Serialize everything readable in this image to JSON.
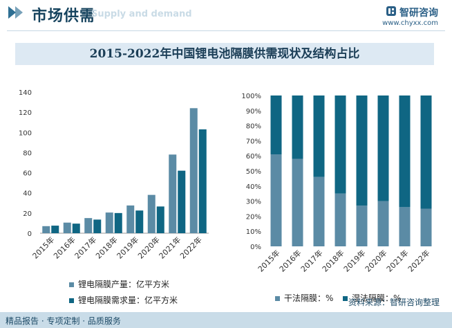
{
  "header": {
    "title": "市场供需",
    "subtitle": "Supply and demand",
    "brand": "智研咨询",
    "site": "www.chyxx.com"
  },
  "banner": "2015-2022年中国锂电池隔膜供需现状及结构占比",
  "colors": {
    "light": "#5b8ba5",
    "dark": "#0f6683"
  },
  "chart_data": [
    {
      "type": "bar",
      "categories": [
        "2015年",
        "2016年",
        "2017年",
        "2018年",
        "2019年",
        "2020年",
        "2021年",
        "2022年"
      ],
      "series": [
        {
          "name": "锂电隔膜产量：亿平方米",
          "values": [
            7,
            10.5,
            15,
            20.5,
            27.5,
            38,
            78,
            124
          ]
        },
        {
          "name": "锂电隔膜需求量：亿平方米",
          "values": [
            7.5,
            9.5,
            13.5,
            20,
            22.5,
            26.5,
            62,
            103
          ]
        }
      ],
      "ylim": [
        0,
        140
      ],
      "yticks": [
        "0",
        "20",
        "40",
        "60",
        "80",
        "100",
        "120",
        "140"
      ]
    },
    {
      "type": "bar",
      "stacked": true,
      "categories": [
        "2015年",
        "2016年",
        "2017年",
        "2018年",
        "2019年",
        "2020年",
        "2021年",
        "2022年"
      ],
      "series": [
        {
          "name": "干法隔膜：%",
          "values": [
            61,
            58,
            46,
            35,
            27,
            30,
            26,
            25
          ]
        },
        {
          "name": "湿法隔膜：%",
          "values": [
            39,
            42,
            54,
            65,
            73,
            70,
            74,
            75
          ]
        }
      ],
      "ylim": [
        0,
        100
      ],
      "yticks": [
        "0%",
        "10%",
        "20%",
        "30%",
        "40%",
        "50%",
        "60%",
        "70%",
        "80%",
        "90%",
        "100%"
      ]
    }
  ],
  "footer": {
    "left": "精品报告 · 专项定制 · 品质服务",
    "source": "资料来源：智研咨询整理"
  }
}
